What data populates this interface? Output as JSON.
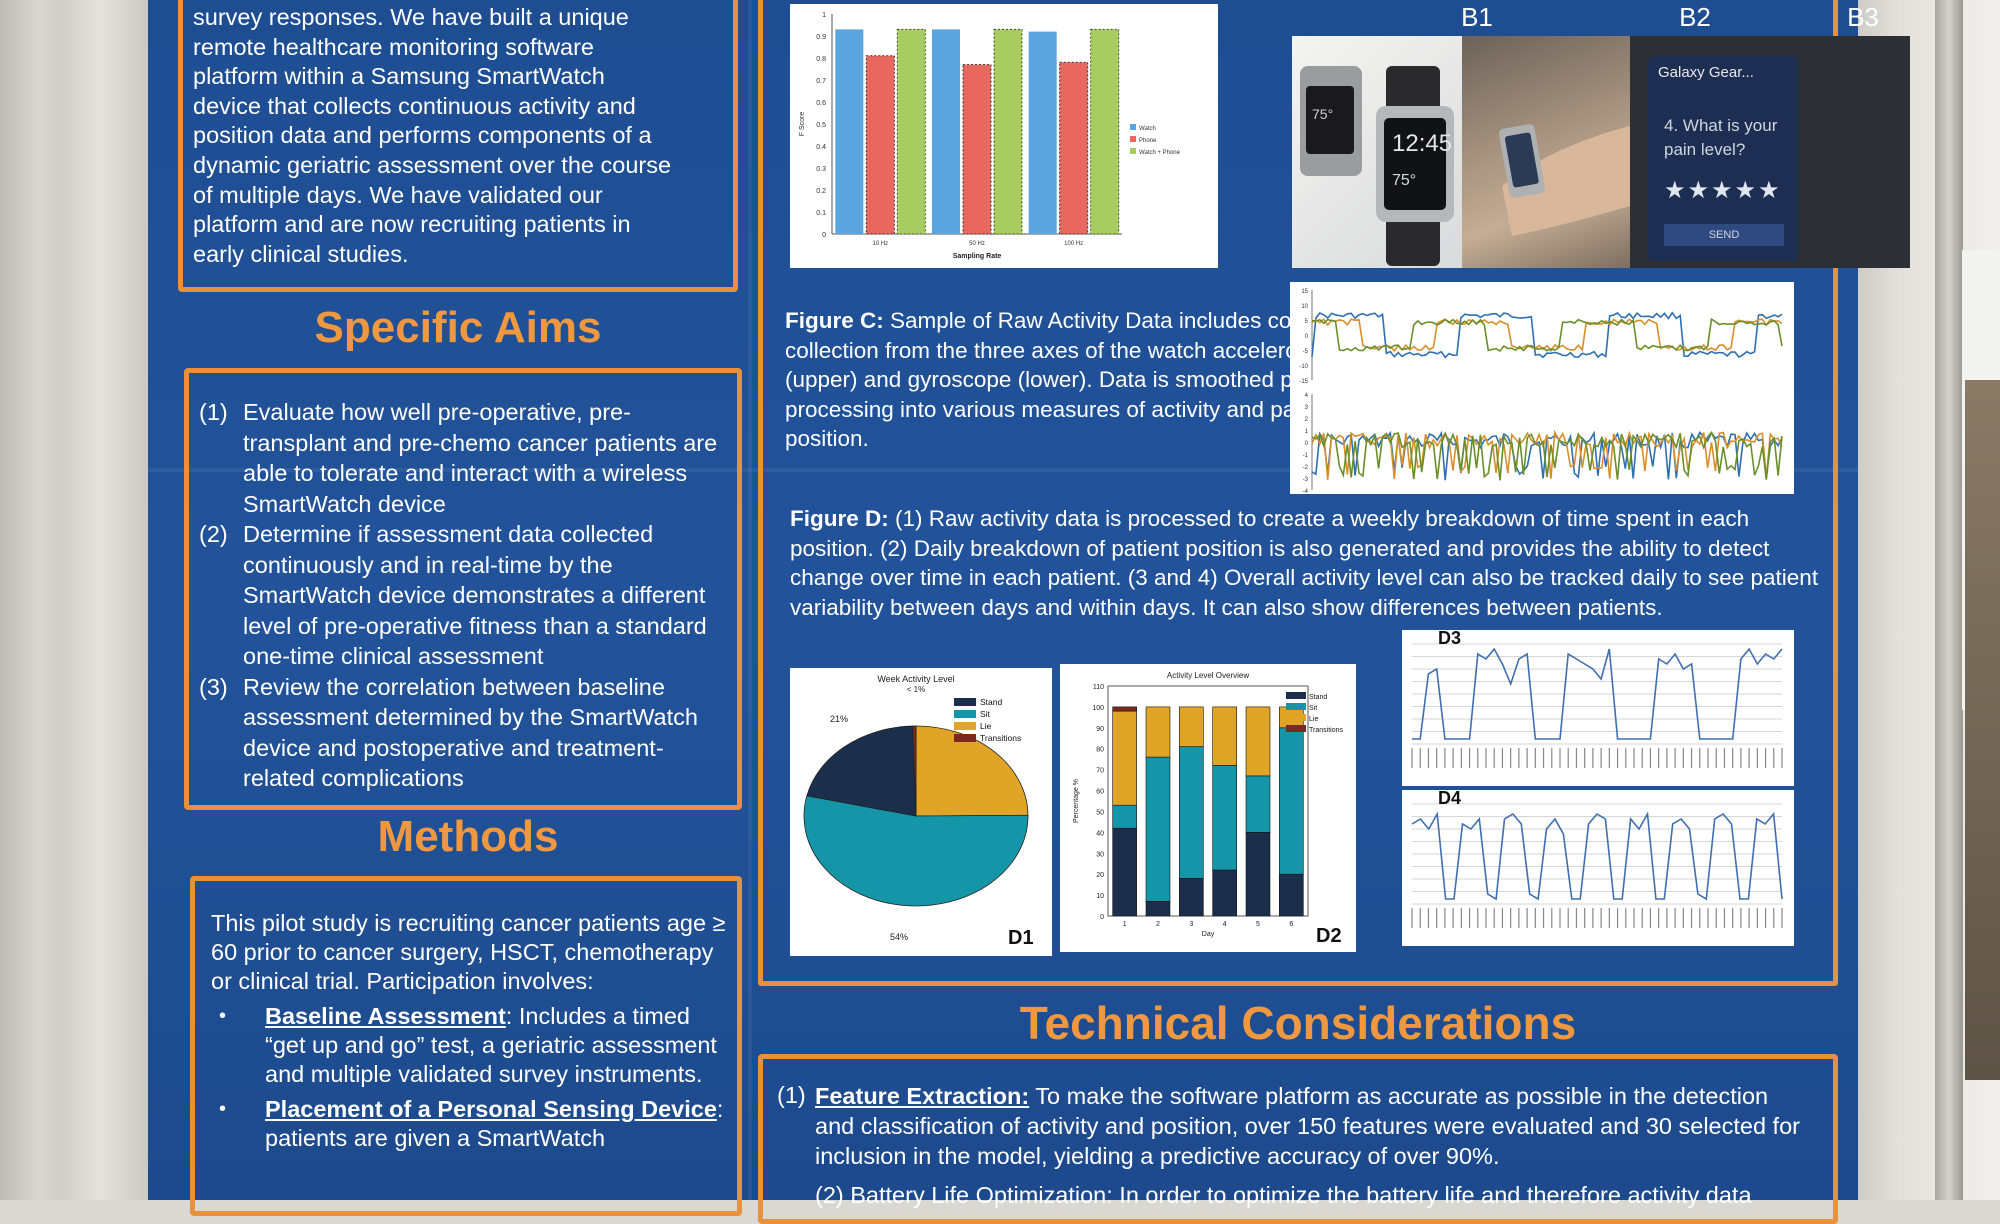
{
  "intro": {
    "lines": [
      "survey responses. We have built a unique",
      "remote healthcare monitoring software",
      "platform within a Samsung SmartWatch",
      "device that collects continuous activity and",
      "position data and performs components of a",
      "dynamic geriatric assessment over the course",
      "of multiple days. We have validated our",
      "platform and are now recruiting patients in",
      "early clinical studies."
    ]
  },
  "specific_aims": {
    "title": "Specific Aims",
    "items": [
      {
        "num": "(1)",
        "text": "Evaluate how well pre-operative, pre-transplant and pre-chemo cancer patients are able to tolerate and interact with a wireless SmartWatch device"
      },
      {
        "num": "(2)",
        "text": "Determine if assessment data collected continuously and in real-time by the SmartWatch device demonstrates a different level of pre-operative fitness than a standard one-time clinical assessment"
      },
      {
        "num": "(3)",
        "text": "Review the correlation between baseline assessment determined by the SmartWatch device and postoperative and treatment-related complications"
      }
    ]
  },
  "methods": {
    "title": "Methods",
    "intro": "This pilot study is recruiting cancer patients age ≥ 60 prior to cancer surgery, HSCT, chemotherapy or clinical trial. Participation involves:",
    "bullets": [
      {
        "bold": "Baseline Assessment",
        "text": ": Includes a timed “get up and go” test, a geriatric assessment and multiple validated survey instruments."
      },
      {
        "bold": "Placement of a Personal Sensing Device",
        "text": ": patients are given a SmartWatch"
      }
    ]
  },
  "figure_b": {
    "labels": [
      "B1",
      "B2",
      "B3"
    ],
    "watch_time": "12:45",
    "watch_temp": "75°",
    "app_title": "Galaxy Gear...",
    "question": "4. What is your pain level?",
    "stars": "★★★★★",
    "send": "SEND"
  },
  "figure_c_caption": {
    "label": "Figure C:",
    "text": "Sample of Raw Activity Data includes continuous collection from the three axes of the watch accelerometer (upper) and gyroscope (lower). Data is smoothed prior to processing into various measures of activity and patient position."
  },
  "figure_d_caption": {
    "label": "Figure D:",
    "text": "(1) Raw activity data is processed to create a weekly breakdown of time spent in each position. (2) Daily breakdown of patient position is also generated and provides the ability to detect change over time in each patient. (3 and 4) Overall activity level can also be tracked daily to see patient variability between days and within days. It can also show differences between patients."
  },
  "technical": {
    "title": "Technical Considerations",
    "item1": {
      "num": "(1)",
      "bold": "Feature Extraction:",
      "text": " To make the software platform as accurate as possible in the detection and classification of activity and position, over 150 features were evaluated and 30 selected for inclusion in the model, yielding a predictive accuracy of over 90%."
    },
    "item2_partial": "(2) Battery Life Optimization: In order to optimize the battery life and therefore activity data"
  },
  "colors": {
    "poster_blue": "#22539a",
    "accent_orange": "#f0983f",
    "stand": "#1b2f4d",
    "sit": "#1596a8",
    "lie": "#e0a526",
    "transitions": "#7a2a1f"
  },
  "chart_data": [
    {
      "type": "bar",
      "title": "",
      "xlabel": "Sampling Rate",
      "ylabel": "F Score",
      "categories": [
        "10 Hz",
        "50 Hz",
        "100 Hz"
      ],
      "ylim": [
        0,
        1
      ],
      "yticks": [
        "0",
        "0.1",
        "0.2",
        "0.3",
        "0.4",
        "0.5",
        "0.6",
        "0.7",
        "0.8",
        "0.9",
        "1"
      ],
      "series": [
        {
          "name": "Watch",
          "color": "#5aa5dd",
          "values": [
            0.93,
            0.93,
            0.92
          ]
        },
        {
          "name": "Phone",
          "color": "#e8675f",
          "values": [
            0.81,
            0.77,
            0.78
          ]
        },
        {
          "name": "Watch + Phone",
          "color": "#a8cc62",
          "values": [
            0.93,
            0.93,
            0.93
          ]
        }
      ],
      "legend": "right"
    },
    {
      "type": "pie",
      "title": "Week Activity Level",
      "subtitle": "< 1%",
      "labels": [
        "Stand",
        "Sit",
        "Lie",
        "Transitions"
      ],
      "values": [
        21,
        54,
        25,
        0.5
      ],
      "shown_labels": [
        "21%",
        "54%"
      ],
      "panel": "D1"
    },
    {
      "type": "bar",
      "title": "Activity Level Overview",
      "xlabel": "Day",
      "ylabel": "Percentage %",
      "categories": [
        "1",
        "2",
        "3",
        "4",
        "5",
        "6"
      ],
      "ylim": [
        0,
        110
      ],
      "yticks": [
        "0",
        "10",
        "20",
        "30",
        "40",
        "50",
        "60",
        "70",
        "80",
        "90",
        "100",
        "110"
      ],
      "stacked": true,
      "series": [
        {
          "name": "Stand",
          "values": [
            42,
            7,
            18,
            22,
            40,
            20
          ]
        },
        {
          "name": "Sit",
          "values": [
            11,
            69,
            63,
            50,
            27,
            70
          ]
        },
        {
          "name": "Lie",
          "values": [
            45,
            24,
            19,
            28,
            33,
            10
          ]
        },
        {
          "name": "Transitions",
          "values": [
            2,
            0,
            0,
            0,
            0,
            0
          ]
        }
      ],
      "panel": "D2"
    },
    {
      "type": "line",
      "panel": "D3",
      "title": "",
      "values": [
        0.05,
        0.05,
        0.7,
        0.75,
        0.05,
        0.05,
        0.05,
        0.05,
        0.9,
        0.85,
        0.95,
        0.8,
        0.6,
        0.85,
        0.9,
        0.05,
        0.05,
        0.05,
        0.05,
        0.9,
        0.85,
        0.8,
        0.75,
        0.65,
        0.95,
        0.05,
        0.05,
        0.05,
        0.05,
        0.05,
        0.85,
        0.8,
        0.9,
        0.75,
        0.8,
        0.05,
        0.05,
        0.05,
        0.05,
        0.05,
        0.85,
        0.95,
        0.8,
        0.9,
        0.85,
        0.95
      ]
    },
    {
      "type": "line",
      "panel": "D4",
      "title": "",
      "values": [
        0.8,
        0.85,
        0.75,
        0.9,
        0.05,
        0.05,
        0.8,
        0.75,
        0.85,
        0.1,
        0.05,
        0.85,
        0.9,
        0.8,
        0.1,
        0.05,
        0.75,
        0.85,
        0.7,
        0.05,
        0.05,
        0.8,
        0.9,
        0.85,
        0.05,
        0.05,
        0.85,
        0.75,
        0.9,
        0.05,
        0.05,
        0.8,
        0.85,
        0.75,
        0.1,
        0.05,
        0.85,
        0.9,
        0.8,
        0.05,
        0.05,
        0.85,
        0.8,
        0.9,
        0.05
      ]
    },
    {
      "type": "line",
      "panel": "C-accelerometer",
      "title": "",
      "yticks": [
        "15",
        "10",
        "5",
        "0",
        "-5",
        "-10",
        "-15"
      ]
    },
    {
      "type": "line",
      "panel": "C-gyroscope",
      "title": "",
      "yticks": [
        "4",
        "3",
        "2",
        "1",
        "0",
        "-1",
        "-2",
        "-3",
        "-4"
      ]
    }
  ]
}
